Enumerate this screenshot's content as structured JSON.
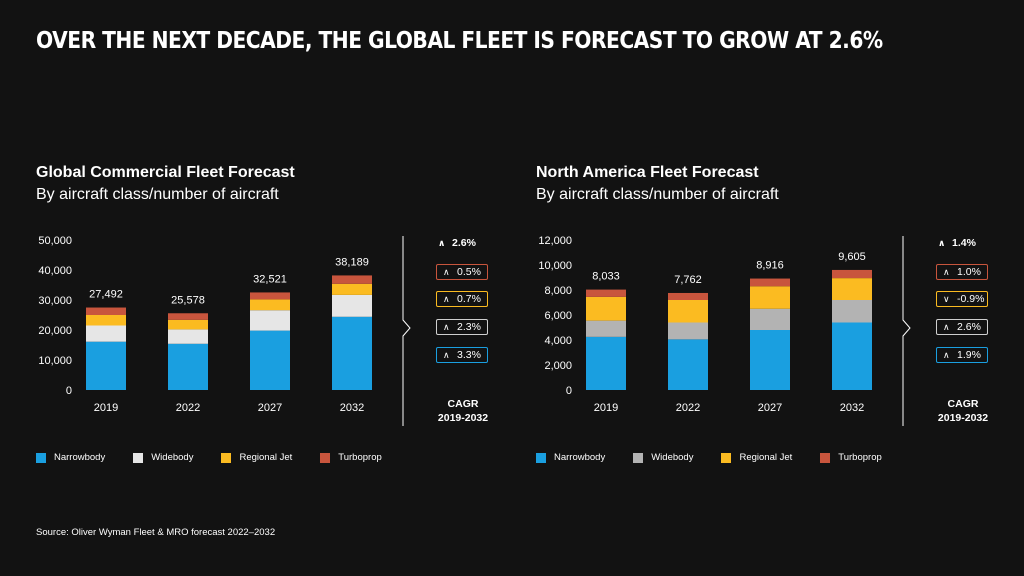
{
  "headline": "OVER THE NEXT DECADE, THE GLOBAL FLEET IS FORECAST TO GROW AT 2.6%",
  "source": "Source: Oliver Wyman Fleet & MRO forecast 2022–2032",
  "colors": {
    "Narrowbody": "#1a9fe0",
    "Widebody_global": "#e6e6e6",
    "Widebody_na": "#b3b3b3",
    "Regional Jet": "#fbbb21",
    "Turboprop": "#c8553d",
    "background": "#121212"
  },
  "chart_data": [
    {
      "type": "bar",
      "stacked": true,
      "title": "Global Commercial Fleet Forecast",
      "subtitle": "By aircraft class/number of aircraft",
      "categories": [
        "2019",
        "2022",
        "2027",
        "2032"
      ],
      "totals": [
        "27,492",
        "25,578",
        "32,521",
        "38,189"
      ],
      "yticks": [
        "0",
        "10,000",
        "20,000",
        "30,000",
        "40,000",
        "50,000"
      ],
      "ylim": [
        0,
        50000
      ],
      "series": [
        {
          "name": "Narrowbody",
          "values": [
            16100,
            15400,
            19800,
            24400
          ],
          "cagr": "3.3%",
          "dir": "up",
          "border": "#1a9fe0"
        },
        {
          "name": "Widebody",
          "values": [
            5400,
            4800,
            6800,
            7300
          ],
          "cagr": "2.3%",
          "dir": "up",
          "border": "#cfcfcf"
        },
        {
          "name": "Regional Jet",
          "values": [
            3500,
            3200,
            3600,
            3700
          ],
          "cagr": "0.7%",
          "dir": "up",
          "border": "#fbbb21"
        },
        {
          "name": "Turboprop",
          "values": [
            2492,
            2178,
            2321,
            2789
          ],
          "cagr": "0.5%",
          "dir": "up",
          "border": "#c8553d"
        }
      ],
      "cagr_total": "2.6%",
      "cagr_label": [
        "CAGR",
        "2019-2032"
      ],
      "legend": [
        "Narrowbody",
        "Widebody",
        "Regional Jet",
        "Turboprop"
      ]
    },
    {
      "type": "bar",
      "stacked": true,
      "title": "North America Fleet Forecast",
      "subtitle": "By aircraft class/number of aircraft",
      "categories": [
        "2019",
        "2022",
        "2027",
        "2032"
      ],
      "totals": [
        "8,033",
        "7,762",
        "8,916",
        "9,605"
      ],
      "yticks": [
        "0",
        "2,000",
        "4,000",
        "6,000",
        "8,000",
        "10,000",
        "12,000"
      ],
      "ylim": [
        0,
        12000
      ],
      "series": [
        {
          "name": "Narrowbody",
          "values": [
            4250,
            4050,
            4800,
            5400
          ],
          "cagr": "1.9%",
          "dir": "up",
          "border": "#1a9fe0"
        },
        {
          "name": "Widebody",
          "values": [
            1300,
            1350,
            1700,
            1800
          ],
          "cagr": "2.6%",
          "dir": "up",
          "border": "#cfcfcf"
        },
        {
          "name": "Regional Jet",
          "values": [
            1900,
            1800,
            1800,
            1750
          ],
          "cagr": "-0.9%",
          "dir": "down",
          "border": "#fbbb21"
        },
        {
          "name": "Turboprop",
          "values": [
            583,
            562,
            616,
            655
          ],
          "cagr": "1.0%",
          "dir": "up",
          "border": "#c8553d"
        }
      ],
      "cagr_total": "1.4%",
      "cagr_label": [
        "CAGR",
        "2019-2032"
      ],
      "legend": [
        "Narrowbody",
        "Widebody",
        "Regional Jet",
        "Turboprop"
      ]
    }
  ]
}
